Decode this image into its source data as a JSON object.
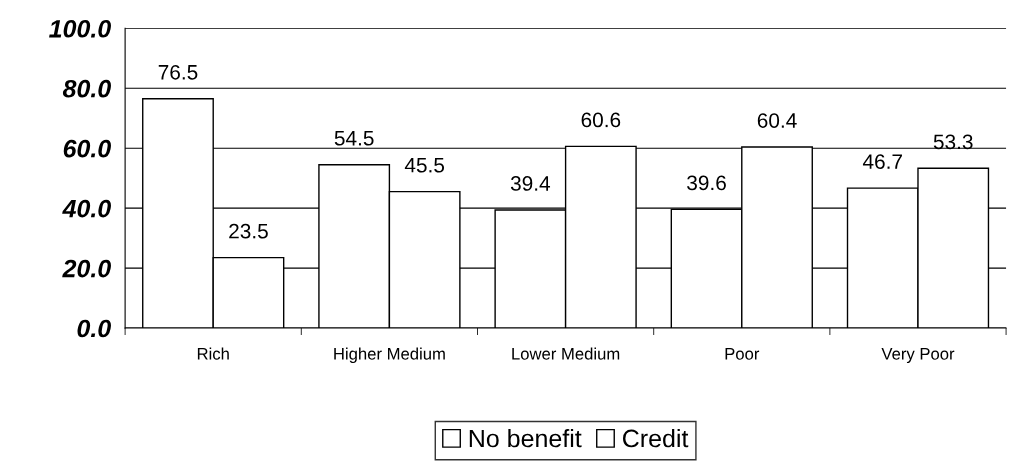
{
  "chart_data": {
    "type": "bar",
    "categories": [
      "Rich",
      "Higher Medium",
      "Lower Medium",
      "Poor",
      "Very Poor"
    ],
    "series": [
      {
        "name": "No benefit",
        "color": "#ffffff",
        "values": [
          76.5,
          54.5,
          39.4,
          39.6,
          46.7
        ]
      },
      {
        "name": "Credit",
        "color": "#ffffff",
        "values": [
          23.5,
          45.5,
          60.6,
          60.4,
          53.3
        ]
      }
    ],
    "ylim": [
      0,
      100
    ],
    "yticks": [
      {
        "value": 0,
        "label": "0.0"
      },
      {
        "value": 20,
        "label": "20.0"
      },
      {
        "value": 40,
        "label": "40.0"
      },
      {
        "value": 60,
        "label": "60.0"
      },
      {
        "value": 80,
        "label": "80.0"
      },
      {
        "value": 100,
        "label": "100.0"
      }
    ],
    "grid": "y",
    "legend": "bottom",
    "data_labels": true
  }
}
